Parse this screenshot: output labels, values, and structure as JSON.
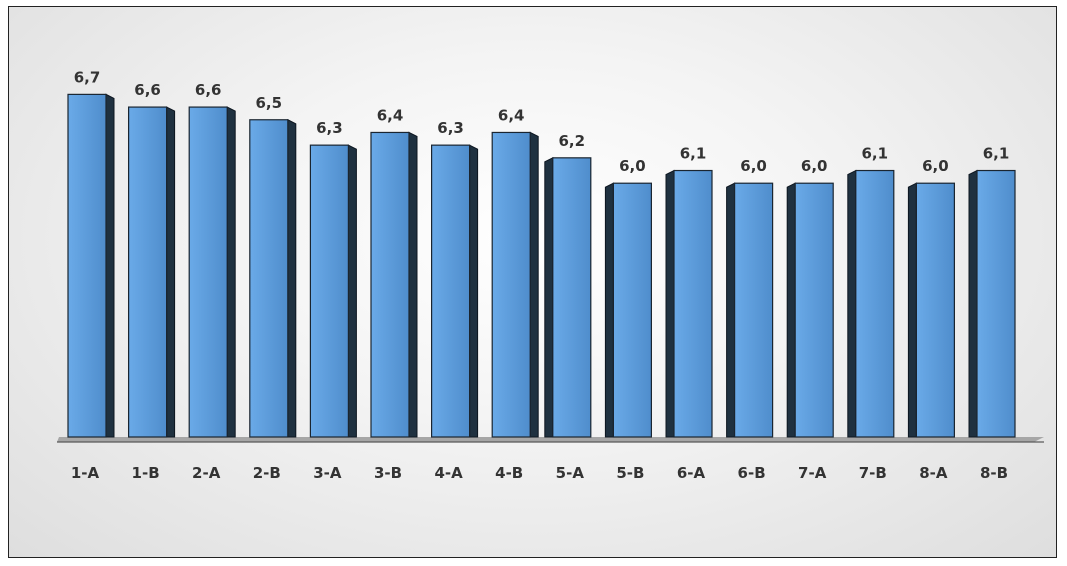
{
  "chart_data": {
    "type": "bar",
    "categories": [
      "1-A",
      "1-B",
      "2-A",
      "2-B",
      "3-A",
      "3-B",
      "4-A",
      "4-B",
      "5-A",
      "5-B",
      "6-A",
      "6-B",
      "7-A",
      "7-B",
      "8-A",
      "8-B"
    ],
    "values": [
      6.7,
      6.6,
      6.6,
      6.5,
      6.3,
      6.4,
      6.3,
      6.4,
      6.2,
      6.0,
      6.1,
      6.0,
      6.0,
      6.1,
      6.0,
      6.1
    ],
    "value_labels": [
      "6,7",
      "6,6",
      "6,6",
      "6,5",
      "6,3",
      "6,4",
      "6,3",
      "6,4",
      "6,2",
      "6,0",
      "6,1",
      "6,0",
      "6,0",
      "6,1",
      "6,0",
      "6,1"
    ],
    "title": "",
    "xlabel": "",
    "ylabel": "",
    "ylim": [
      4,
      6.9
    ],
    "grid": false,
    "legend": "none",
    "style": "3d-bars",
    "colors": {
      "bar_front": "#5b9bd5",
      "bar_front_light": "#7fb6ef",
      "bar_side": "#1f3140",
      "bar_top": "#5e8fc0",
      "floor": "#a6a6a6",
      "text": "#333333"
    }
  }
}
